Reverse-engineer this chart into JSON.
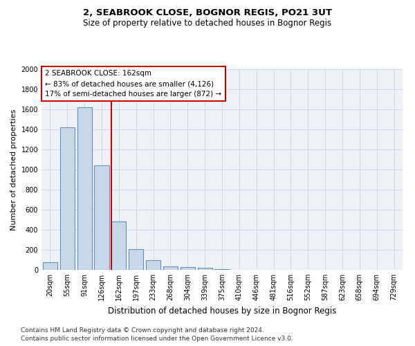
{
  "title": "2, SEABROOK CLOSE, BOGNOR REGIS, PO21 3UT",
  "subtitle": "Size of property relative to detached houses in Bognor Regis",
  "xlabel": "Distribution of detached houses by size in Bognor Regis",
  "ylabel": "Number of detached properties",
  "categories": [
    "20sqm",
    "55sqm",
    "91sqm",
    "126sqm",
    "162sqm",
    "197sqm",
    "233sqm",
    "268sqm",
    "304sqm",
    "339sqm",
    "375sqm",
    "410sqm",
    "446sqm",
    "481sqm",
    "516sqm",
    "552sqm",
    "587sqm",
    "623sqm",
    "658sqm",
    "694sqm",
    "729sqm"
  ],
  "values": [
    75,
    1420,
    1620,
    1040,
    480,
    205,
    100,
    35,
    25,
    20,
    10,
    0,
    0,
    0,
    0,
    0,
    0,
    0,
    0,
    0,
    0
  ],
  "bar_color": "#c8d8e8",
  "bar_edge_color": "#6090b8",
  "highlight_line_index": 4,
  "highlight_line_color": "#cc0000",
  "ylim": [
    0,
    2000
  ],
  "yticks": [
    0,
    200,
    400,
    600,
    800,
    1000,
    1200,
    1400,
    1600,
    1800,
    2000
  ],
  "annotation_box_text": "2 SEABROOK CLOSE: 162sqm\n← 83% of detached houses are smaller (4,126)\n17% of semi-detached houses are larger (872) →",
  "annotation_box_color": "#cc0000",
  "annotation_box_bg": "#ffffff",
  "grid_color": "#d0d8e8",
  "background_color": "#eef2f7",
  "footnote_line1": "Contains HM Land Registry data © Crown copyright and database right 2024.",
  "footnote_line2": "Contains public sector information licensed under the Open Government Licence v3.0.",
  "title_fontsize": 9.5,
  "subtitle_fontsize": 8.5,
  "xlabel_fontsize": 8.5,
  "ylabel_fontsize": 8,
  "tick_fontsize": 7,
  "annotation_fontsize": 7.5,
  "footnote_fontsize": 6.5
}
